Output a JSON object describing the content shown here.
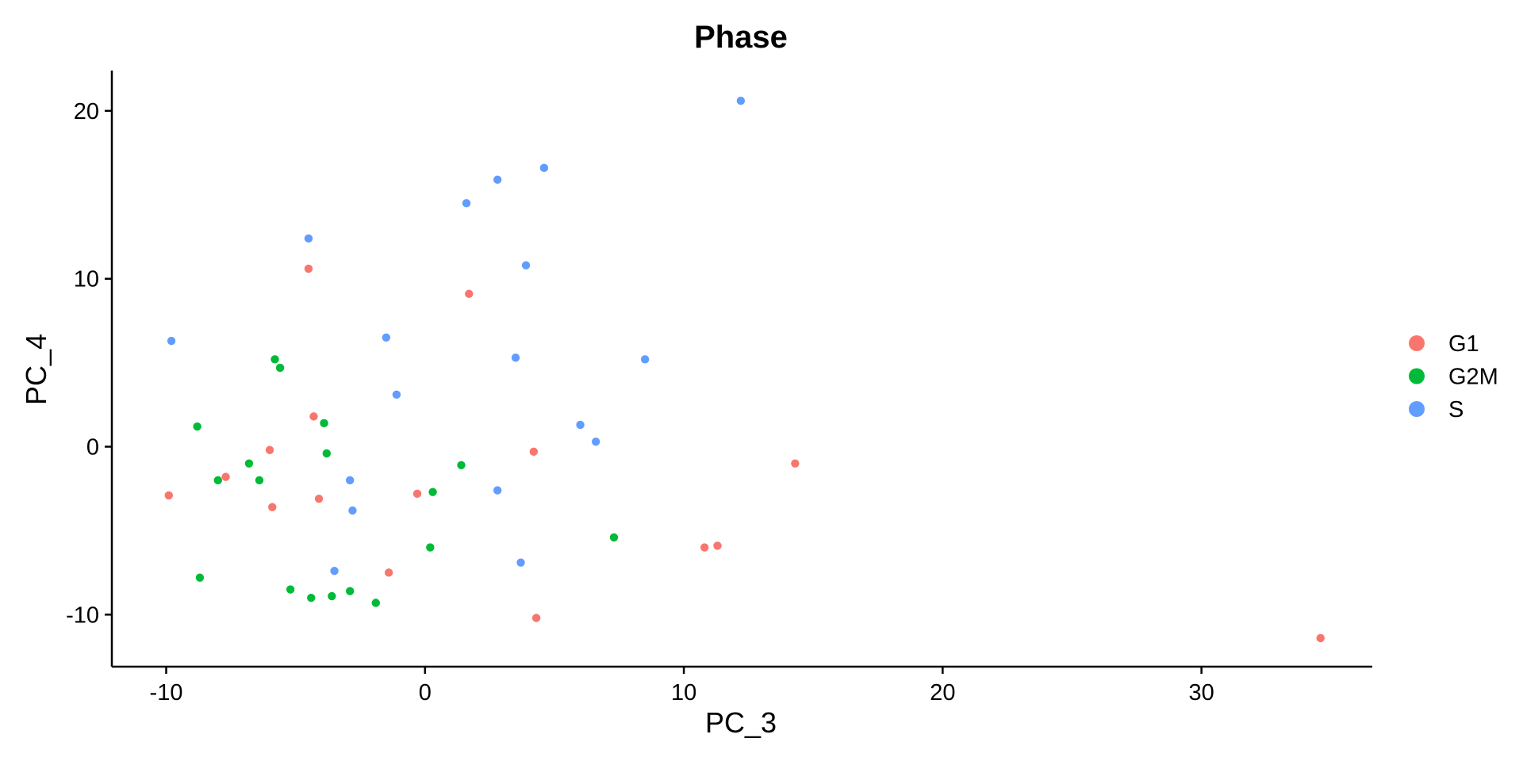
{
  "chart_data": {
    "type": "scatter",
    "title": "Phase",
    "xlabel": "PC_3",
    "ylabel": "PC_4",
    "xlim": [
      -12.1,
      36.6
    ],
    "ylim": [
      -13.1,
      22.4
    ],
    "xticks": [
      -10,
      0,
      10,
      20,
      30
    ],
    "yticks": [
      -10,
      0,
      10,
      20
    ],
    "grid": false,
    "legend_position": "right",
    "series": [
      {
        "name": "G1",
        "color": "#F8766D",
        "points": [
          {
            "x": -4.5,
            "y": 10.6
          },
          {
            "x": 1.7,
            "y": 9.1
          },
          {
            "x": -4.3,
            "y": 1.8
          },
          {
            "x": -6.0,
            "y": -0.2
          },
          {
            "x": 4.2,
            "y": -0.3
          },
          {
            "x": 14.3,
            "y": -1.0
          },
          {
            "x": -9.9,
            "y": -2.9
          },
          {
            "x": -7.7,
            "y": -1.8
          },
          {
            "x": -0.3,
            "y": -2.8
          },
          {
            "x": -4.1,
            "y": -3.1
          },
          {
            "x": -5.9,
            "y": -3.6
          },
          {
            "x": 10.8,
            "y": -6.0
          },
          {
            "x": 11.3,
            "y": -5.9
          },
          {
            "x": -1.4,
            "y": -7.5
          },
          {
            "x": 4.3,
            "y": -10.2
          },
          {
            "x": 34.6,
            "y": -11.4
          }
        ]
      },
      {
        "name": "G2M",
        "color": "#00BA38",
        "points": [
          {
            "x": -5.8,
            "y": 5.2
          },
          {
            "x": -5.6,
            "y": 4.7
          },
          {
            "x": -8.8,
            "y": 1.2
          },
          {
            "x": -3.9,
            "y": 1.4
          },
          {
            "x": -3.8,
            "y": -0.4
          },
          {
            "x": -6.8,
            "y": -1.0
          },
          {
            "x": 1.4,
            "y": -1.1
          },
          {
            "x": -8.0,
            "y": -2.0
          },
          {
            "x": -6.4,
            "y": -2.0
          },
          {
            "x": 0.3,
            "y": -2.7
          },
          {
            "x": 7.3,
            "y": -5.4
          },
          {
            "x": 0.2,
            "y": -6.0
          },
          {
            "x": -8.7,
            "y": -7.8
          },
          {
            "x": -5.2,
            "y": -8.5
          },
          {
            "x": -4.4,
            "y": -9.0
          },
          {
            "x": -3.6,
            "y": -8.9
          },
          {
            "x": -2.9,
            "y": -8.6
          },
          {
            "x": -1.9,
            "y": -9.3
          }
        ]
      },
      {
        "name": "S",
        "color": "#619CFF",
        "points": [
          {
            "x": 12.2,
            "y": 20.6
          },
          {
            "x": 4.6,
            "y": 16.6
          },
          {
            "x": 2.8,
            "y": 15.9
          },
          {
            "x": 1.6,
            "y": 14.5
          },
          {
            "x": -4.5,
            "y": 12.4
          },
          {
            "x": 3.9,
            "y": 10.8
          },
          {
            "x": -9.8,
            "y": 6.3
          },
          {
            "x": -1.5,
            "y": 6.5
          },
          {
            "x": 3.5,
            "y": 5.3
          },
          {
            "x": 8.5,
            "y": 5.2
          },
          {
            "x": -1.1,
            "y": 3.1
          },
          {
            "x": 6.0,
            "y": 1.3
          },
          {
            "x": 6.6,
            "y": 0.3
          },
          {
            "x": -2.9,
            "y": -2.0
          },
          {
            "x": 2.8,
            "y": -2.6
          },
          {
            "x": -2.8,
            "y": -3.8
          },
          {
            "x": 3.7,
            "y": -6.9
          },
          {
            "x": -3.5,
            "y": -7.4
          }
        ]
      }
    ]
  }
}
